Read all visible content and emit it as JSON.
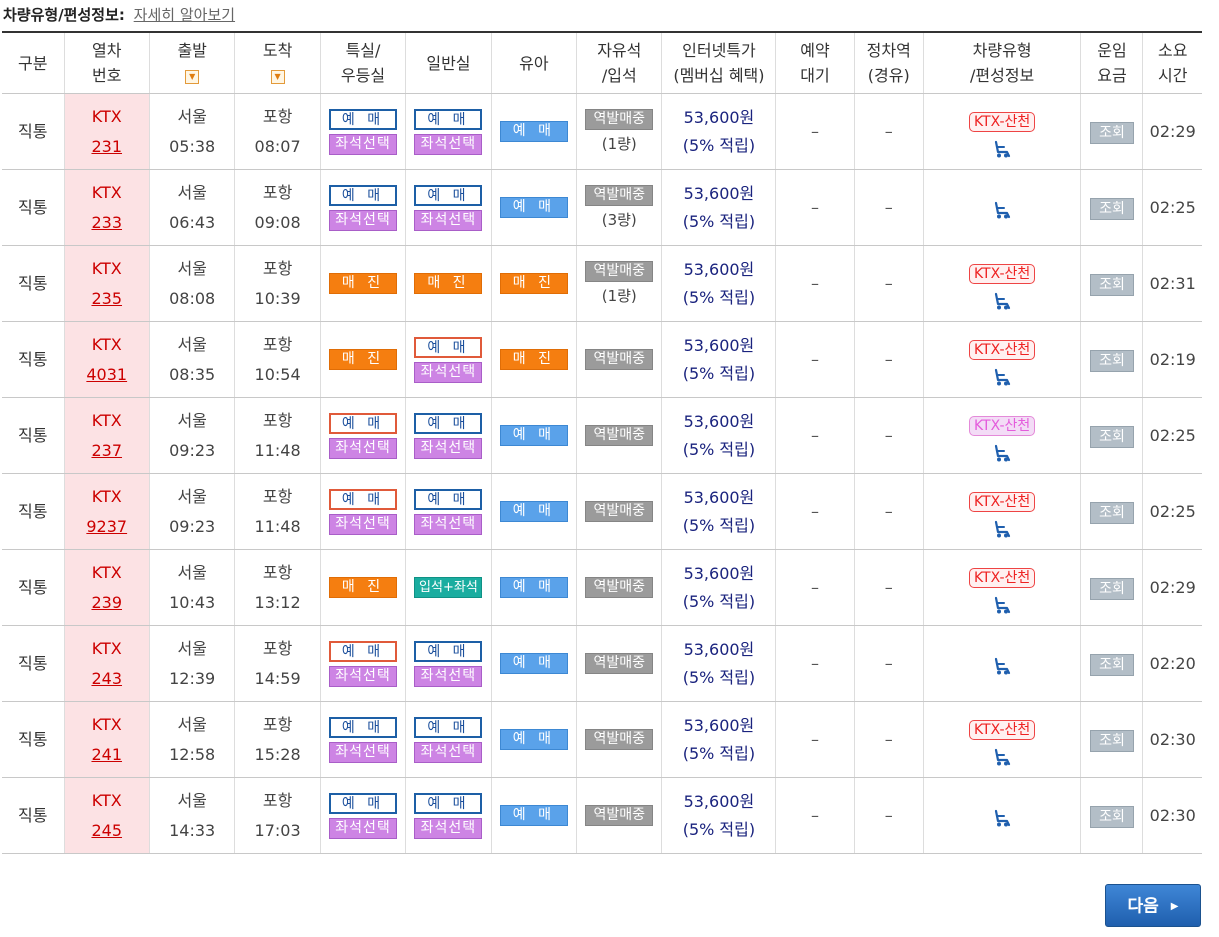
{
  "info": {
    "label": "차량유형/편성정보:",
    "link": "자세히 알아보기"
  },
  "headers": {
    "kind": [
      "구분"
    ],
    "train": [
      "열차",
      "번호"
    ],
    "dep": [
      "출발"
    ],
    "arr": [
      "도착"
    ],
    "special": [
      "특실/",
      "우등실"
    ],
    "general": [
      "일반실"
    ],
    "infant": [
      "유아"
    ],
    "free": [
      "자유석",
      "/입석"
    ],
    "fare": [
      "인터넷특가",
      "(멤버십 혜택)"
    ],
    "wait": [
      "예약",
      "대기"
    ],
    "via": [
      "정차역",
      "(경유)"
    ],
    "cartype": [
      "차량유형",
      "/편성정보"
    ],
    "price": [
      "운임",
      "요금"
    ],
    "dur": [
      "소요",
      "시간"
    ]
  },
  "labels": {
    "reserve": "예 매",
    "seat_select": "좌석선택",
    "soldout": "매 진",
    "standing_combo": "입석+좌석",
    "station_only": "역발매중",
    "lookup": "조회",
    "dash": "–",
    "fare_points": "(5% 적립)",
    "next": "다음"
  },
  "rows": [
    {
      "kind": "직통",
      "train_type": "KTX",
      "train_no": "231",
      "dep_station": "서울",
      "dep_time": "05:38",
      "arr_station": "포항",
      "arr_time": "08:07",
      "special": "reserve_seat",
      "general": "reserve_seat",
      "infant": "reserve",
      "free_cars": "(1량)",
      "fare": "53,600원",
      "badge": "KTX-산천",
      "badge_style": "red",
      "duration": "02:29"
    },
    {
      "kind": "직통",
      "train_type": "KTX",
      "train_no": "233",
      "dep_station": "서울",
      "dep_time": "06:43",
      "arr_station": "포항",
      "arr_time": "09:08",
      "special": "reserve_seat",
      "general": "reserve_seat",
      "infant": "reserve",
      "free_cars": "(3량)",
      "fare": "53,600원",
      "badge": "",
      "badge_style": "",
      "duration": "02:25"
    },
    {
      "kind": "직통",
      "train_type": "KTX",
      "train_no": "235",
      "dep_station": "서울",
      "dep_time": "08:08",
      "arr_station": "포항",
      "arr_time": "10:39",
      "special": "soldout",
      "general": "soldout",
      "infant": "soldout",
      "free_cars": "(1량)",
      "fare": "53,600원",
      "badge": "KTX-산천",
      "badge_style": "red",
      "duration": "02:31"
    },
    {
      "kind": "직통",
      "train_type": "KTX",
      "train_no": "4031",
      "dep_station": "서울",
      "dep_time": "08:35",
      "arr_station": "포항",
      "arr_time": "10:54",
      "special": "soldout",
      "general": "reserve_seat_red",
      "infant": "soldout",
      "free_cars": "",
      "fare": "53,600원",
      "badge": "KTX-산천",
      "badge_style": "red",
      "duration": "02:19"
    },
    {
      "kind": "직통",
      "train_type": "KTX",
      "train_no": "237",
      "dep_station": "서울",
      "dep_time": "09:23",
      "arr_station": "포항",
      "arr_time": "11:48",
      "special": "reserve_seat_red",
      "general": "reserve_seat",
      "infant": "reserve",
      "free_cars": "",
      "fare": "53,600원",
      "badge": "KTX-산천",
      "badge_style": "pink",
      "duration": "02:25"
    },
    {
      "kind": "직통",
      "train_type": "KTX",
      "train_no": "9237",
      "dep_station": "서울",
      "dep_time": "09:23",
      "arr_station": "포항",
      "arr_time": "11:48",
      "special": "reserve_seat_red",
      "general": "reserve_seat",
      "infant": "reserve",
      "free_cars": "",
      "fare": "53,600원",
      "badge": "KTX-산천",
      "badge_style": "red",
      "duration": "02:25"
    },
    {
      "kind": "직통",
      "train_type": "KTX",
      "train_no": "239",
      "dep_station": "서울",
      "dep_time": "10:43",
      "arr_station": "포항",
      "arr_time": "13:12",
      "special": "soldout",
      "general": "standing_combo",
      "infant": "reserve",
      "free_cars": "",
      "fare": "53,600원",
      "badge": "KTX-산천",
      "badge_style": "red",
      "duration": "02:29"
    },
    {
      "kind": "직통",
      "train_type": "KTX",
      "train_no": "243",
      "dep_station": "서울",
      "dep_time": "12:39",
      "arr_station": "포항",
      "arr_time": "14:59",
      "special": "reserve_seat_red",
      "general": "reserve_seat",
      "infant": "reserve",
      "free_cars": "",
      "fare": "53,600원",
      "badge": "",
      "badge_style": "",
      "duration": "02:20"
    },
    {
      "kind": "직통",
      "train_type": "KTX",
      "train_no": "241",
      "dep_station": "서울",
      "dep_time": "12:58",
      "arr_station": "포항",
      "arr_time": "15:28",
      "special": "reserve_seat",
      "general": "reserve_seat",
      "infant": "reserve",
      "free_cars": "",
      "fare": "53,600원",
      "badge": "KTX-산천",
      "badge_style": "red",
      "duration": "02:30"
    },
    {
      "kind": "직통",
      "train_type": "KTX",
      "train_no": "245",
      "dep_station": "서울",
      "dep_time": "14:33",
      "arr_station": "포항",
      "arr_time": "17:03",
      "special": "reserve_seat",
      "general": "reserve_seat",
      "infant": "reserve",
      "free_cars": "",
      "fare": "53,600원",
      "badge": "",
      "badge_style": "",
      "duration": "02:30"
    }
  ]
}
